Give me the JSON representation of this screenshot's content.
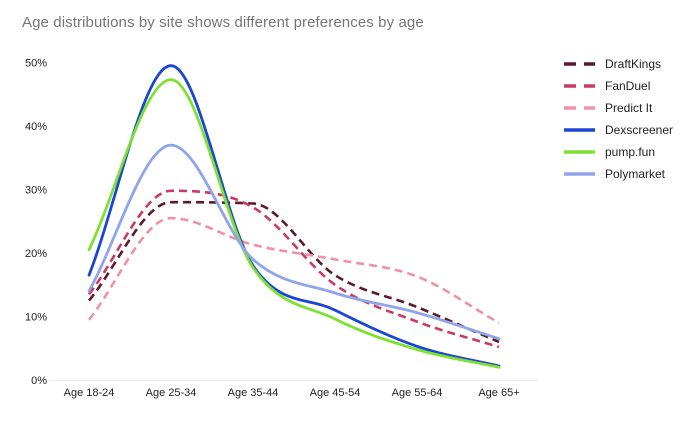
{
  "chart_data": {
    "type": "line",
    "title": "Age distributions by site shows different preferences by age",
    "xlabel": "",
    "ylabel": "",
    "categories": [
      "Age 18-24",
      "Age 25-34",
      "Age 35-44",
      "Age 45-54",
      "Age 55-64",
      "Age 65+"
    ],
    "y_tick_labels": [
      "0%",
      "10%",
      "20%",
      "30%",
      "40%",
      "50%"
    ],
    "ylim": [
      0,
      50
    ],
    "grid": false,
    "line_shape": "smooth",
    "legend_position": "right",
    "series": [
      {
        "name": "DraftKings",
        "color": "#5a1a2a",
        "style": "dashed",
        "values": [
          12.5,
          28.0,
          27.8,
          16.5,
          11.5,
          6.0
        ]
      },
      {
        "name": "FanDuel",
        "color": "#cb3a64",
        "style": "dashed",
        "values": [
          13.5,
          29.8,
          27.2,
          15.0,
          9.2,
          5.2
        ]
      },
      {
        "name": "Predict It",
        "color": "#ee92a4",
        "style": "dashed",
        "values": [
          9.5,
          25.5,
          21.3,
          19.0,
          16.3,
          9.0
        ]
      },
      {
        "name": "Dexscreener",
        "color": "#1b45d4",
        "style": "solid",
        "values": [
          16.5,
          49.5,
          18.0,
          11.0,
          5.3,
          2.2
        ]
      },
      {
        "name": "pump.fun",
        "color": "#7fe032",
        "style": "solid",
        "values": [
          20.5,
          47.3,
          17.7,
          9.6,
          4.8,
          2.0
        ]
      },
      {
        "name": "Polymarket",
        "color": "#8fa4ea",
        "style": "solid",
        "values": [
          14.0,
          37.0,
          19.0,
          13.7,
          10.6,
          6.5
        ]
      }
    ],
    "style_colors": {
      "title_text": "#757575",
      "axis_text": "#222222",
      "baseline": "#e8e8e8",
      "background": "#ffffff"
    }
  }
}
